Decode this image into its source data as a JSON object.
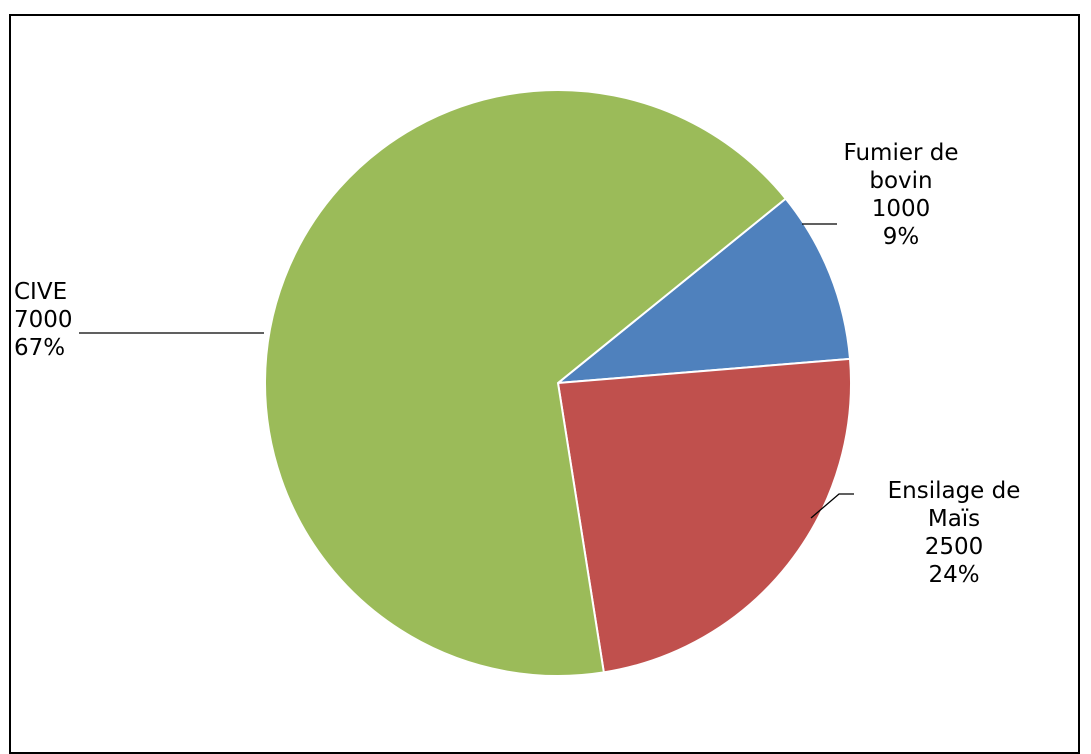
{
  "chart_data": {
    "type": "pie",
    "title": "",
    "slices": [
      {
        "label_lines": [
          "Fumier de",
          "bovin"
        ],
        "value": 1000,
        "value_text": "1000",
        "percent_text": "9%",
        "color": "#4F81BD"
      },
      {
        "label_lines": [
          "Ensilage de",
          "Maïs"
        ],
        "value": 2500,
        "value_text": "2500",
        "percent_text": "24%",
        "color": "#C0504D"
      },
      {
        "label_lines": [
          "CIVE"
        ],
        "value": 7000,
        "value_text": "7000",
        "percent_text": "67%",
        "color": "#9BBB59"
      }
    ],
    "legend": "none",
    "data_labels": "outside with leader lines"
  }
}
